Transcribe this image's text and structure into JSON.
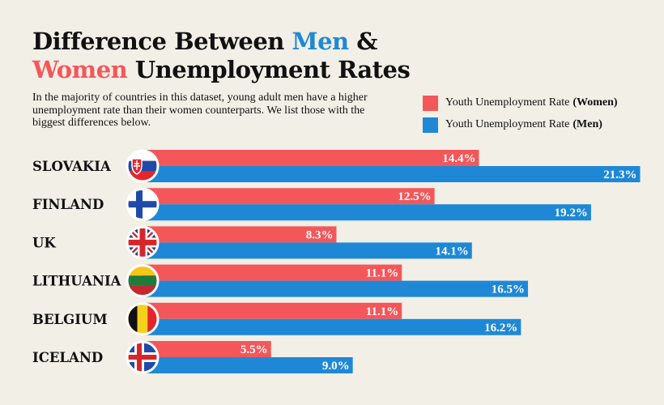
{
  "colors": {
    "women": "#f4575a",
    "men": "#1f88d6",
    "background": "#f1efe6"
  },
  "title": {
    "line1_prefix": "Difference Between ",
    "line1_men": "Men",
    "line1_suffix": " &",
    "line2_women": "Women",
    "line2_suffix": " Unemployment Rates"
  },
  "subtitle": "In the majority of countries in this dataset, young adult men have a higher unemployment rate than their women counterparts. We list those with the biggest differences below.",
  "legend": {
    "women_label": "Youth Unemployment Rate ",
    "women_bold": "(Women)",
    "men_label": "Youth Unemployment Rate ",
    "men_bold": "(Men)"
  },
  "chart_data": {
    "type": "bar",
    "orientation": "horizontal",
    "title": "Difference Between Men & Women Unemployment Rates",
    "categories": [
      "SLOVAKIA",
      "FINLAND",
      "UK",
      "LITHUANIA",
      "BELGIUM",
      "ICELAND"
    ],
    "series": [
      {
        "name": "Youth Unemployment Rate (Women)",
        "values": [
          14.4,
          12.5,
          8.3,
          11.1,
          11.1,
          5.5
        ],
        "labels": [
          "14.4%",
          "12.5%",
          "8.3%",
          "11.1%",
          "11.1%",
          "5.5%"
        ]
      },
      {
        "name": "Youth Unemployment Rate (Men)",
        "values": [
          21.3,
          19.2,
          14.1,
          16.5,
          16.2,
          9.0
        ],
        "labels": [
          "21.3%",
          "19.2%",
          "14.1%",
          "16.5%",
          "16.2%",
          "9.0%"
        ]
      }
    ],
    "flags": [
      "slovakia-flag",
      "finland-flag",
      "uk-flag",
      "lithuania-flag",
      "belgium-flag",
      "iceland-flag"
    ],
    "unit": "%",
    "grid": false,
    "legend_position": "top-right"
  }
}
